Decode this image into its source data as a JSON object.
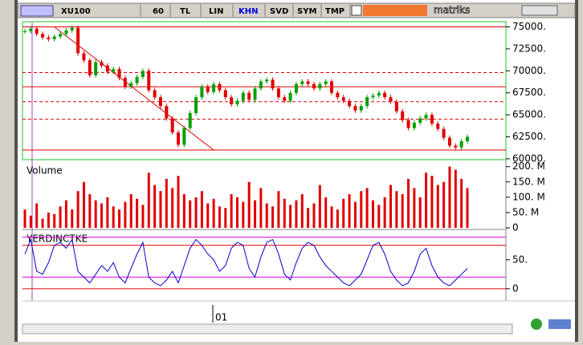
{
  "toolbar": {
    "symbol": "XU100",
    "period": "60",
    "currency": "TL",
    "scale": "LIN",
    "buttons": [
      "KHN",
      "SVD",
      "SYM",
      "TMP"
    ],
    "brand": "matriks"
  },
  "x_axis": {
    "labels": [
      "01"
    ]
  },
  "chart_data": [
    {
      "type": "candlestick",
      "up_color": "#00a000",
      "down_color": "#e00000",
      "close": [
        74500,
        74800,
        74200,
        73800,
        73600,
        73900,
        74200,
        74600,
        74900,
        72000,
        71200,
        69500,
        71000,
        70600,
        69900,
        70200,
        69200,
        68200,
        68600,
        69300,
        70000,
        67800,
        67000,
        66000,
        64600,
        63000,
        61600,
        63500,
        65200,
        67000,
        68200,
        67600,
        68500,
        67800,
        67000,
        66200,
        66600,
        67500,
        66700,
        68000,
        68800,
        69000,
        68000,
        67000,
        66600,
        67500,
        68500,
        68800,
        68500,
        68000,
        68500,
        68800,
        67500,
        67000,
        66600,
        66000,
        65500,
        66000,
        67000,
        67200,
        67500,
        67000,
        66500,
        65400,
        64400,
        63500,
        64100,
        64600,
        65000,
        64000,
        63400,
        62400,
        61500,
        61300,
        62000,
        62500
      ],
      "ylim": [
        60000,
        75500
      ],
      "yticks": [
        {
          "value": 60000,
          "label": "60000."
        },
        {
          "value": 62500,
          "label": "62500."
        },
        {
          "value": 65000,
          "label": "65000."
        },
        {
          "value": 67500,
          "label": "67500."
        },
        {
          "value": 70000,
          "label": "70000."
        },
        {
          "value": 72500,
          "label": "72500."
        },
        {
          "value": 75000,
          "label": "75000."
        }
      ],
      "hlines": [
        {
          "value": 75000,
          "style": "solid"
        },
        {
          "value": 69800,
          "style": "dashed"
        },
        {
          "value": 68200,
          "style": "solid"
        },
        {
          "value": 66500,
          "style": "dashed"
        },
        {
          "value": 64500,
          "style": "dashed"
        },
        {
          "value": 61000,
          "style": "solid"
        }
      ],
      "hline_color": "#e00000",
      "trendline": {
        "from": [
          5,
          75000
        ],
        "to": [
          32,
          61000
        ],
        "color": "#e00000"
      }
    },
    {
      "type": "bar",
      "title": "Volume",
      "color": "#e00000",
      "values": [
        60,
        40,
        80,
        30,
        50,
        45,
        70,
        90,
        60,
        120,
        150,
        110,
        90,
        80,
        100,
        70,
        60,
        85,
        110,
        95,
        75,
        180,
        140,
        120,
        160,
        130,
        170,
        110,
        90,
        100,
        120,
        80,
        95,
        70,
        65,
        110,
        100,
        85,
        150,
        90,
        130,
        80,
        70,
        120,
        95,
        75,
        90,
        110,
        65,
        80,
        140,
        100,
        70,
        60,
        95,
        110,
        85,
        120,
        130,
        90,
        75,
        100,
        140,
        120,
        110,
        160,
        130,
        100,
        180,
        170,
        140,
        150,
        200,
        190,
        160,
        130
      ],
      "ylim": [
        0,
        215
      ],
      "yticks": [
        {
          "value": 0,
          "label": "0"
        },
        {
          "value": 50,
          "label": "50. M"
        },
        {
          "value": 100,
          "label": "100. M"
        },
        {
          "value": 150,
          "label": "150. M"
        },
        {
          "value": 200,
          "label": "200. M"
        }
      ]
    },
    {
      "type": "line",
      "title": "YERDINCTKE",
      "color": "#0000cc",
      "values": [
        60,
        85,
        30,
        25,
        45,
        75,
        80,
        70,
        85,
        30,
        20,
        10,
        25,
        40,
        30,
        45,
        20,
        10,
        35,
        60,
        80,
        20,
        10,
        5,
        15,
        30,
        10,
        40,
        70,
        85,
        75,
        60,
        50,
        30,
        40,
        70,
        80,
        75,
        35,
        20,
        55,
        80,
        85,
        60,
        25,
        15,
        45,
        70,
        80,
        75,
        55,
        40,
        30,
        20,
        10,
        5,
        15,
        25,
        50,
        75,
        80,
        60,
        30,
        15,
        5,
        10,
        30,
        60,
        70,
        40,
        20,
        10,
        5,
        15,
        25,
        35
      ],
      "ylim": [
        -21,
        101
      ],
      "yticks": [
        0,
        {
          "value": 50,
          "label": "50."
        }
      ],
      "hlines": [
        {
          "value": 89,
          "color": "#e000e0"
        },
        {
          "value": 75,
          "color": "#e00000"
        },
        {
          "value": 20,
          "color": "#e000e0"
        },
        {
          "value": 0,
          "color": "#e00000"
        }
      ]
    }
  ]
}
